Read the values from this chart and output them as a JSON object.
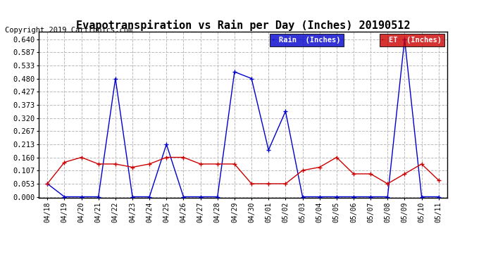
{
  "title": "Evapotranspiration vs Rain per Day (Inches) 20190512",
  "copyright": "Copyright 2019 Cartronics.com",
  "x_labels": [
    "04/18",
    "04/19",
    "04/20",
    "04/21",
    "04/22",
    "04/23",
    "04/24",
    "04/25",
    "04/26",
    "04/27",
    "04/28",
    "04/29",
    "04/30",
    "05/01",
    "05/02",
    "05/03",
    "05/04",
    "05/05",
    "05/06",
    "05/07",
    "05/08",
    "05/09",
    "05/10",
    "05/11"
  ],
  "rain_values": [
    0.053,
    0.0,
    0.0,
    0.0,
    0.48,
    0.0,
    0.0,
    0.213,
    0.0,
    0.0,
    0.0,
    0.507,
    0.48,
    0.19,
    0.347,
    0.0,
    0.0,
    0.0,
    0.0,
    0.0,
    0.0,
    0.64,
    0.0,
    0.0
  ],
  "et_values": [
    0.053,
    0.14,
    0.16,
    0.133,
    0.133,
    0.12,
    0.133,
    0.16,
    0.16,
    0.133,
    0.133,
    0.133,
    0.053,
    0.053,
    0.053,
    0.107,
    0.12,
    0.16,
    0.093,
    0.093,
    0.053,
    0.093,
    0.133,
    0.067
  ],
  "rain_color": "#0000cc",
  "et_color": "#cc0000",
  "bg_color": "#ffffff",
  "grid_color": "#bbbbbb",
  "title_fontsize": 11,
  "copyright_fontsize": 7.5,
  "yticks": [
    0.0,
    0.053,
    0.107,
    0.16,
    0.213,
    0.267,
    0.32,
    0.373,
    0.427,
    0.48,
    0.533,
    0.587,
    0.64
  ],
  "ylim": [
    -0.005,
    0.67
  ],
  "legend_rain_label": "Rain  (Inches)"
}
